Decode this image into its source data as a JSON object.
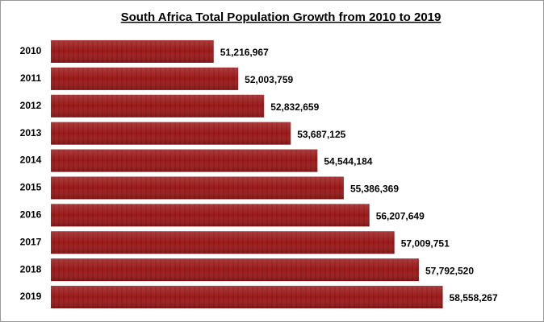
{
  "chart_data": {
    "type": "hbar",
    "title": "South Africa Total Population Growth from 2010 to 2019",
    "categories": [
      "2010",
      "2011",
      "2012",
      "2013",
      "2014",
      "2015",
      "2016",
      "2017",
      "2018",
      "2019"
    ],
    "values": [
      51216967,
      52003759,
      52832659,
      53687125,
      54544184,
      55386369,
      56207649,
      57009751,
      57792520,
      58558267
    ],
    "value_labels": [
      "51,216,967",
      "52,003,759",
      "52,832,659",
      "53,687,125",
      "54,544,184",
      "55,386,369",
      "56,207,649",
      "57,009,751",
      "57,792,520",
      "58,558,267"
    ],
    "color": "#9e1a1a",
    "xlim": [
      46000000,
      61000000
    ]
  }
}
